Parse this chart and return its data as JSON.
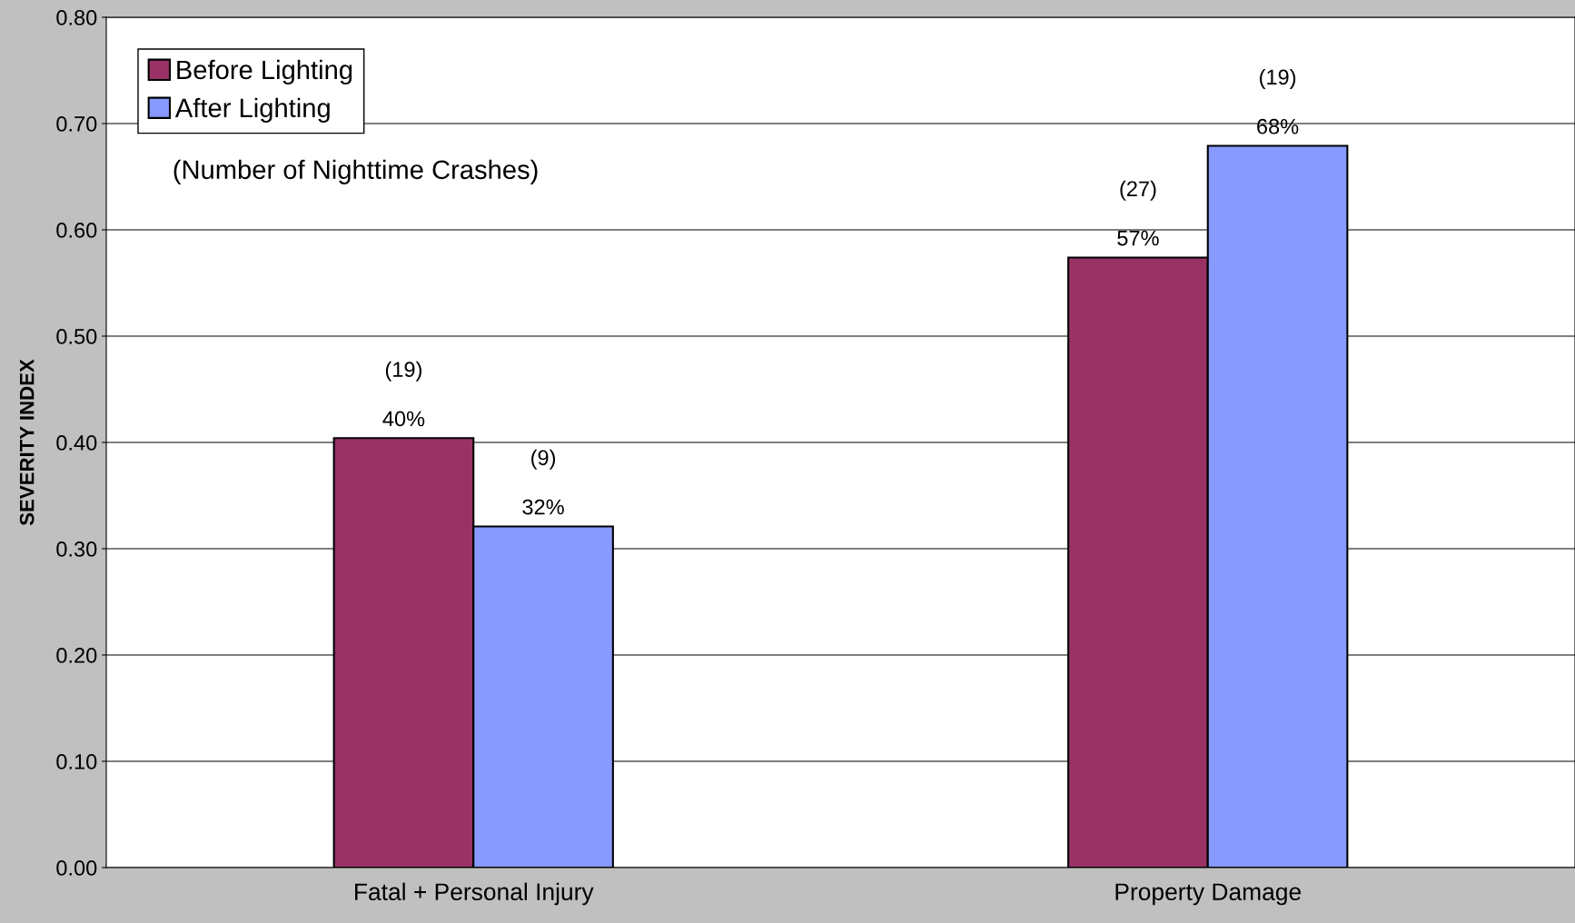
{
  "chart_data": {
    "type": "bar",
    "ylabel": "SEVERITY INDEX",
    "categories": [
      "Fatal + Personal Injury",
      "Property Damage"
    ],
    "series": [
      {
        "name": "Before Lighting",
        "color": "#993366",
        "values": [
          0.404,
          0.574
        ],
        "value_labels": [
          "(19)\n\n40%",
          "(27)\n\n57%"
        ]
      },
      {
        "name": "After Lighting",
        "color": "#8899ff",
        "values": [
          0.321,
          0.679
        ],
        "value_labels": [
          "(9)\n\n32%",
          "(19)\n\n68%"
        ]
      }
    ],
    "ylim": [
      0,
      0.8
    ],
    "yticks": [
      {
        "value": 0,
        "label": "0.00"
      },
      {
        "value": 0.1,
        "label": "0.10"
      },
      {
        "value": 0.2,
        "label": "0.20"
      },
      {
        "value": 0.3,
        "label": "0.30"
      },
      {
        "value": 0.4,
        "label": "0.40"
      },
      {
        "value": 0.5,
        "label": "0.50"
      },
      {
        "value": 0.6,
        "label": "0.60"
      },
      {
        "value": 0.7,
        "label": "0.70"
      },
      {
        "value": 0.8,
        "label": "0.80"
      }
    ],
    "grid": "y",
    "legend": "top left",
    "annotations": [
      {
        "text": "(Number of Nighttime Crashes)"
      }
    ]
  }
}
